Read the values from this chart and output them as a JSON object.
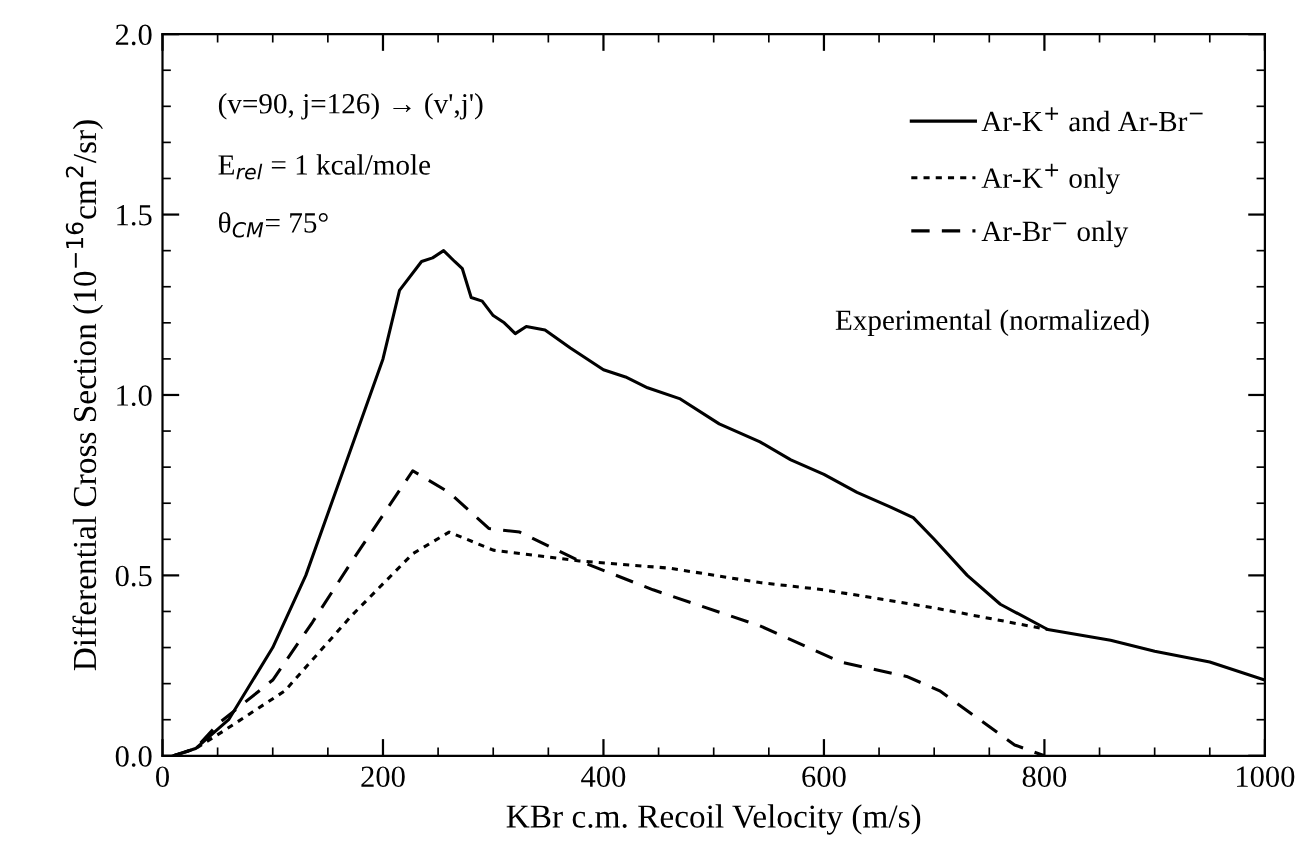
{
  "chart_data": {
    "type": "line",
    "xlabel": "KBr c.m. Recoil Velocity (m/s)",
    "ylabel": "Differential Cross Section (10$^{−16}$cm$^{2}$/sr)",
    "xlim": [
      0,
      1000
    ],
    "ylim": [
      0,
      2
    ],
    "xticks": [
      0,
      200,
      400,
      600,
      800,
      1000
    ],
    "yticks": [
      {
        "value": 0,
        "label": "0.0"
      },
      {
        "value": 0.5,
        "label": "0.5"
      },
      {
        "value": 1.0,
        "label": "1.0"
      },
      {
        "value": 1.5,
        "label": "1.5"
      },
      {
        "value": 2.0,
        "label": "2.0"
      }
    ],
    "grid": false,
    "legend": "top right",
    "marker": "none",
    "annotations": [
      "(v=90, j=126) → (v',j')",
      "E$_{rel}$ = 1 kcal/mole",
      "θ$_{CM}$= 75°",
      "Experimental (normalized)"
    ],
    "series": [
      {
        "name": "Ar-K$^{+}$ and Ar-Br$^{−}$",
        "color": "#000000",
        "line_style": "solid",
        "x": [
          10,
          30,
          60,
          100,
          130,
          165,
          200,
          215,
          235,
          245,
          255,
          265,
          272,
          280,
          290,
          300,
          310,
          320,
          330,
          347,
          370,
          400,
          420,
          440,
          469,
          505,
          542,
          570,
          600,
          630,
          660,
          681,
          700,
          730,
          760,
          803,
          860,
          900,
          950,
          1000
        ],
        "values": [
          0,
          0.02,
          0.1,
          0.3,
          0.5,
          0.8,
          1.1,
          1.29,
          1.37,
          1.38,
          1.4,
          1.37,
          1.35,
          1.27,
          1.26,
          1.22,
          1.2,
          1.17,
          1.19,
          1.18,
          1.13,
          1.07,
          1.05,
          1.02,
          0.99,
          0.92,
          0.87,
          0.82,
          0.78,
          0.73,
          0.69,
          0.66,
          0.6,
          0.5,
          0.42,
          0.35,
          0.32,
          0.29,
          0.26,
          0.21
        ]
      },
      {
        "name": "Ar-K$^{+}$ only",
        "color": "#000000",
        "line_style": "dotted",
        "x": [
          10,
          30,
          56,
          111,
          172,
          227,
          260,
          300,
          378,
          460,
          542,
          600,
          700,
          803
        ],
        "values": [
          0,
          0.02,
          0.07,
          0.18,
          0.39,
          0.56,
          0.62,
          0.57,
          0.54,
          0.52,
          0.48,
          0.46,
          0.41,
          0.35
        ]
      },
      {
        "name": "Ar-Br$^{−}$ only",
        "color": "#000000",
        "line_style": "dashed",
        "x": [
          10,
          30,
          51,
          100,
          136,
          172,
          227,
          260,
          296,
          324,
          378,
          445,
          542,
          615,
          675,
          705,
          773,
          800
        ],
        "values": [
          0,
          0.02,
          0.09,
          0.21,
          0.37,
          0.54,
          0.79,
          0.73,
          0.63,
          0.62,
          0.54,
          0.46,
          0.36,
          0.26,
          0.22,
          0.18,
          0.03,
          0
        ]
      }
    ]
  }
}
